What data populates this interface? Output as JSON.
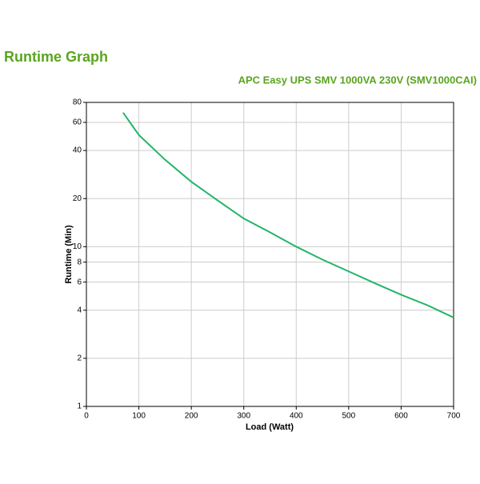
{
  "chart_data": {
    "type": "line",
    "title": "Runtime Graph",
    "subtitle": "APC Easy UPS SMV 1000VA 230V (SMV1000CAI)",
    "x_label": "Load (Watt)",
    "y_label": "Runtime (Min)",
    "x": [
      70,
      100,
      150,
      200,
      250,
      300,
      350,
      400,
      450,
      500,
      550,
      600,
      650,
      700
    ],
    "series": [
      {
        "name": "Runtime",
        "color": "#22b46a",
        "values": [
          69,
          50,
          35,
          25.5,
          19.5,
          15,
          12.3,
          10,
          8.3,
          7,
          5.9,
          5,
          4.3,
          3.6
        ]
      }
    ],
    "xlim": [
      0,
      700
    ],
    "xticks": [
      0,
      100,
      200,
      300,
      400,
      500,
      600,
      700
    ],
    "ylim": [
      1,
      80
    ],
    "yticks": [
      1,
      2,
      4,
      6,
      8,
      10,
      20,
      40,
      60,
      80
    ],
    "y_log": true,
    "grid": true
  }
}
